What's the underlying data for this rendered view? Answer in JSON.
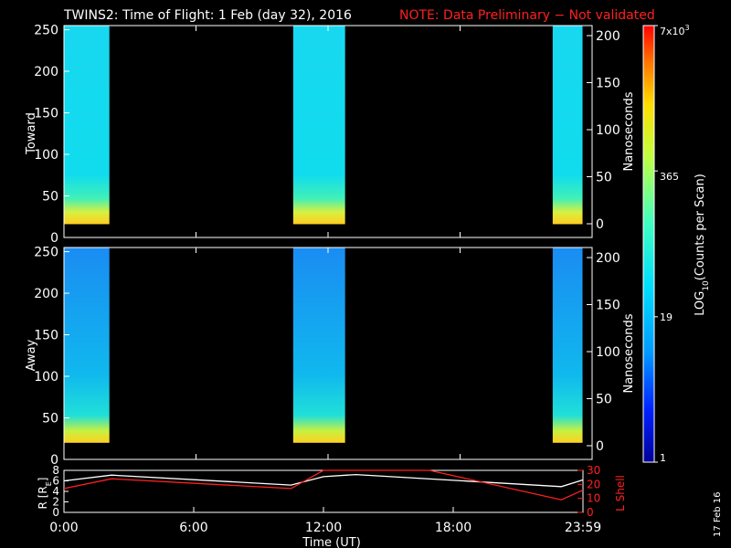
{
  "title": {
    "main": "TWINS2: Time of Flight:  1 Feb (day  32), 2016",
    "note": "NOTE: Data Preliminary − Not validated"
  },
  "timestamp": "17 Feb 16",
  "colors": {
    "note": "#ff2020",
    "lshell": "#ff2020",
    "radius": "#ffffff",
    "background": "#000000"
  },
  "chart_data": [
    {
      "type": "heatmap",
      "panel": "Toward",
      "ylabel": "Toward",
      "ylim": [
        0,
        255
      ],
      "yticks": [
        0,
        50,
        100,
        150,
        200,
        250
      ],
      "y2label": "Nanoseconds",
      "y2ticks": [
        0,
        50,
        100,
        150,
        200
      ],
      "x_ticks": [
        "0:00",
        "6:00",
        "12:00",
        "18:00",
        "23:59"
      ],
      "data_intervals_hours": [
        [
          0.0,
          2.1
        ],
        [
          10.6,
          13.0
        ],
        [
          22.6,
          23.98
        ]
      ],
      "data_y_range": [
        16,
        255
      ],
      "colormap": "rainbow (log scale)"
    },
    {
      "type": "heatmap",
      "panel": "Away",
      "ylabel": "Away",
      "ylim": [
        0,
        255
      ],
      "yticks": [
        0,
        50,
        100,
        150,
        200,
        250
      ],
      "y2label": "Nanoseconds",
      "y2ticks": [
        0,
        50,
        100,
        150,
        200
      ],
      "x_ticks": [
        "0:00",
        "6:00",
        "12:00",
        "18:00",
        "23:59"
      ],
      "data_intervals_hours": [
        [
          0.0,
          2.1
        ],
        [
          10.6,
          13.0
        ],
        [
          22.6,
          23.98
        ]
      ],
      "data_y_range": [
        20,
        255
      ],
      "colormap": "rainbow (log scale)"
    },
    {
      "type": "line",
      "panel": "orbit",
      "ylabel": "R [R",
      "ylabel_sub": "E",
      "ylabel_end": "]",
      "ylim": [
        0,
        8
      ],
      "yticks": [
        0,
        2,
        4,
        6,
        8
      ],
      "y2label": "L Shell",
      "y2lim": [
        0,
        30
      ],
      "y2ticks": [
        0,
        10,
        20,
        30
      ],
      "xlabel": "Time (UT)",
      "x_ticks": [
        "0:00",
        "6:00",
        "12:00",
        "18:00",
        "23:59"
      ],
      "series": [
        {
          "name": "R",
          "axis": "left",
          "color": "#ffffff",
          "x": [
            0.0,
            2.2,
            10.5,
            12.0,
            13.5,
            23.0,
            24.0
          ],
          "y": [
            6.0,
            7.1,
            5.2,
            6.8,
            7.2,
            4.9,
            6.2
          ]
        },
        {
          "name": "L Shell",
          "axis": "right",
          "color": "#ff2020",
          "x": [
            0.0,
            2.2,
            10.5,
            12.0,
            16.9,
            23.0,
            24.0
          ],
          "y": [
            17.0,
            24.0,
            17.0,
            30.0,
            30.0,
            9.0,
            16.0
          ]
        }
      ]
    }
  ],
  "colorbar": {
    "label_prefix": "LOG",
    "label_sub": "10",
    "label_suffix": "(Counts per Scan)",
    "min_label": "1",
    "mid1_label": "19",
    "mid2_label": "365",
    "max_base": "7x10",
    "max_exp": "3",
    "tick_fractions": [
      0.0,
      0.333,
      0.667,
      1.0
    ]
  }
}
